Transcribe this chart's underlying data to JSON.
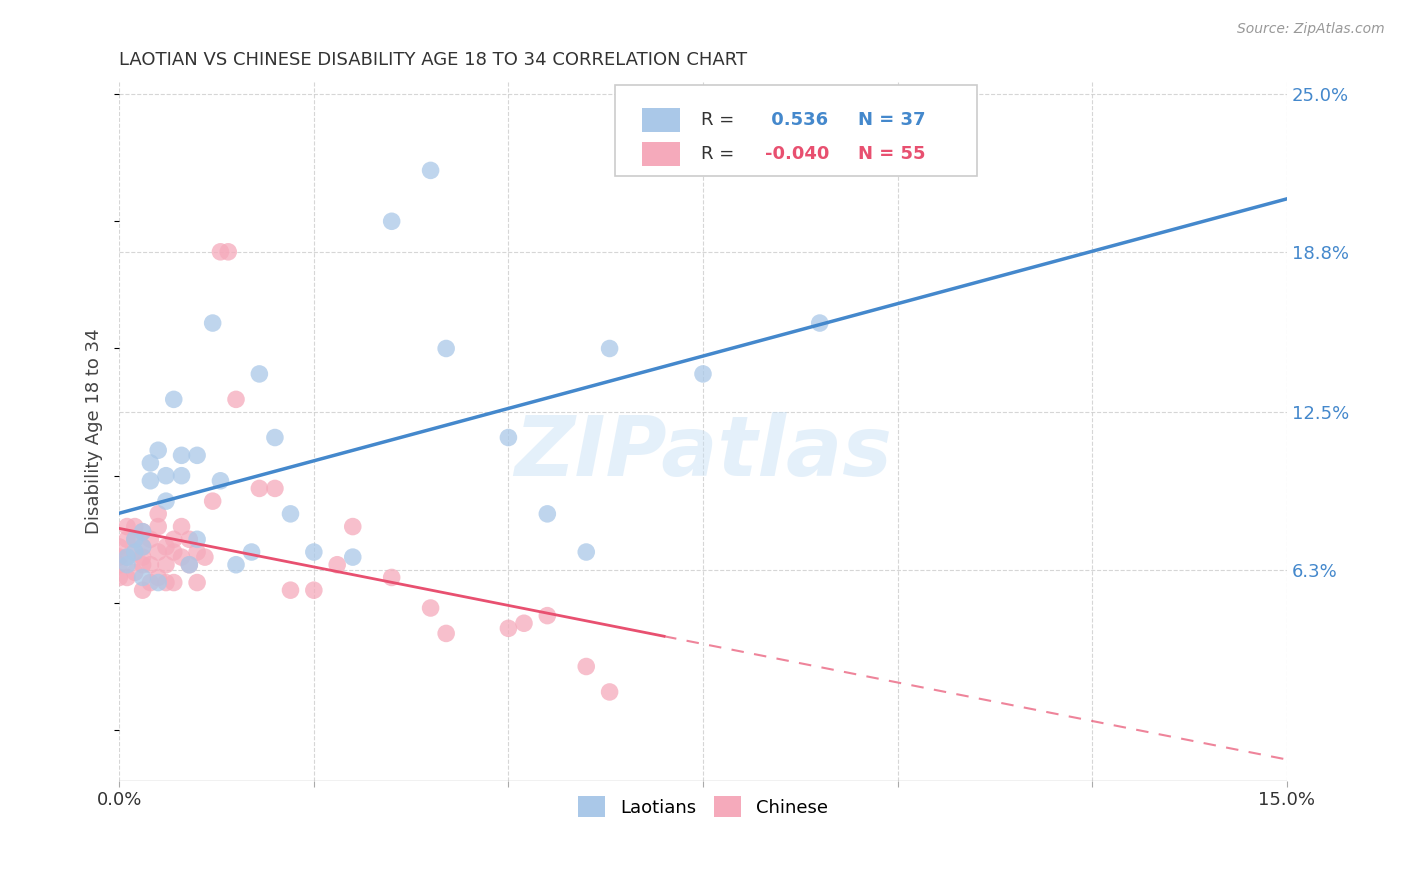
{
  "title": "LAOTIAN VS CHINESE DISABILITY AGE 18 TO 34 CORRELATION CHART",
  "source": "Source: ZipAtlas.com",
  "ylabel": "Disability Age 18 to 34",
  "x_min": 0.0,
  "x_max": 0.15,
  "y_min": -0.02,
  "y_max": 0.255,
  "x_ticks": [
    0.0,
    0.025,
    0.05,
    0.075,
    0.1,
    0.125,
    0.15
  ],
  "x_tick_labels": [
    "0.0%",
    "",
    "",
    "",
    "",
    "",
    "15.0%"
  ],
  "y_tick_labels_right": [
    "6.3%",
    "12.5%",
    "18.8%",
    "25.0%"
  ],
  "y_ticks_right": [
    0.063,
    0.125,
    0.188,
    0.25
  ],
  "grid_color": "#cccccc",
  "background_color": "#ffffff",
  "laotian_color": "#aac8e8",
  "chinese_color": "#f5aabb",
  "laotian_line_color": "#4488cc",
  "chinese_line_color": "#e85070",
  "legend_text_color": "#4488cc",
  "laotian_R": 0.536,
  "laotian_N": 37,
  "chinese_R": -0.04,
  "chinese_N": 55,
  "watermark_text": "ZIPatlas",
  "laotian_points_x": [
    0.001,
    0.001,
    0.002,
    0.002,
    0.003,
    0.003,
    0.003,
    0.004,
    0.004,
    0.005,
    0.005,
    0.006,
    0.006,
    0.007,
    0.008,
    0.008,
    0.009,
    0.01,
    0.01,
    0.012,
    0.013,
    0.015,
    0.017,
    0.018,
    0.02,
    0.022,
    0.025,
    0.03,
    0.035,
    0.04,
    0.042,
    0.05,
    0.055,
    0.06,
    0.063,
    0.075,
    0.09
  ],
  "laotian_points_y": [
    0.065,
    0.068,
    0.07,
    0.075,
    0.072,
    0.078,
    0.06,
    0.098,
    0.105,
    0.11,
    0.058,
    0.09,
    0.1,
    0.13,
    0.1,
    0.108,
    0.065,
    0.108,
    0.075,
    0.16,
    0.098,
    0.065,
    0.07,
    0.14,
    0.115,
    0.085,
    0.07,
    0.068,
    0.2,
    0.22,
    0.15,
    0.115,
    0.085,
    0.07,
    0.15,
    0.14,
    0.16
  ],
  "chinese_points_x": [
    0.0,
    0.0,
    0.0,
    0.0,
    0.001,
    0.001,
    0.001,
    0.001,
    0.002,
    0.002,
    0.002,
    0.002,
    0.003,
    0.003,
    0.003,
    0.003,
    0.003,
    0.004,
    0.004,
    0.004,
    0.005,
    0.005,
    0.005,
    0.005,
    0.006,
    0.006,
    0.006,
    0.007,
    0.007,
    0.007,
    0.008,
    0.008,
    0.009,
    0.009,
    0.01,
    0.01,
    0.011,
    0.012,
    0.013,
    0.014,
    0.015,
    0.018,
    0.02,
    0.022,
    0.025,
    0.028,
    0.03,
    0.035,
    0.04,
    0.042,
    0.05,
    0.052,
    0.055,
    0.06,
    0.063
  ],
  "chinese_points_y": [
    0.068,
    0.072,
    0.065,
    0.06,
    0.075,
    0.08,
    0.068,
    0.06,
    0.075,
    0.08,
    0.07,
    0.062,
    0.068,
    0.072,
    0.078,
    0.065,
    0.055,
    0.065,
    0.075,
    0.058,
    0.07,
    0.08,
    0.085,
    0.06,
    0.065,
    0.072,
    0.058,
    0.058,
    0.07,
    0.075,
    0.068,
    0.08,
    0.075,
    0.065,
    0.058,
    0.07,
    0.068,
    0.09,
    0.188,
    0.188,
    0.13,
    0.095,
    0.095,
    0.055,
    0.055,
    0.065,
    0.08,
    0.06,
    0.048,
    0.038,
    0.04,
    0.042,
    0.045,
    0.025,
    0.015
  ]
}
